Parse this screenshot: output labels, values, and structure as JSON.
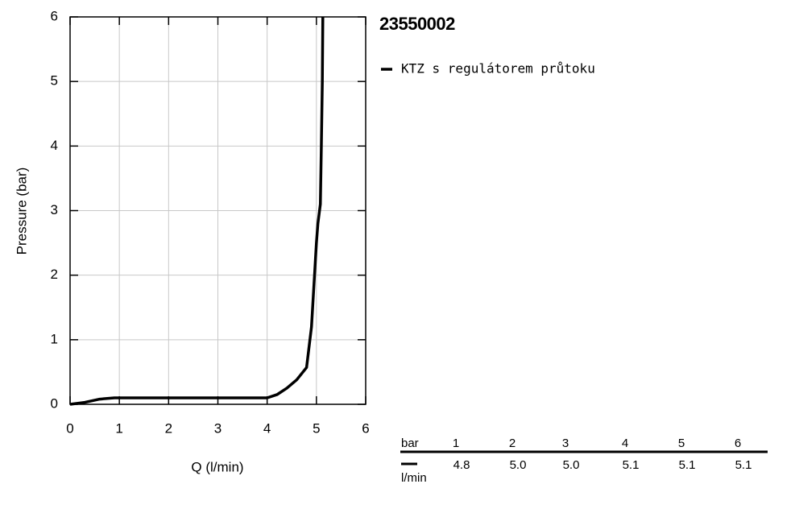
{
  "chart_data": {
    "type": "line",
    "title": "23550002",
    "x_label": "Q (l/min)",
    "y_label": "Pressure (bar)",
    "xlim": [
      0,
      6
    ],
    "ylim": [
      0,
      6
    ],
    "xticks": [
      0,
      1,
      2,
      3,
      4,
      5,
      6
    ],
    "yticks": [
      0,
      1,
      2,
      3,
      4,
      5,
      6
    ],
    "grid": true,
    "series": [
      {
        "name": "KTZ s regulátorem průtoku",
        "color": "#000000",
        "x": [
          0,
          0.3,
          0.6,
          0.9,
          1,
          2,
          3,
          4,
          4.2,
          4.4,
          4.6,
          4.8,
          4.9,
          5.0,
          5.03,
          5.08,
          5.1,
          5.12,
          5.13
        ],
        "values": [
          0,
          0.03,
          0.08,
          0.1,
          0.1,
          0.1,
          0.1,
          0.1,
          0.15,
          0.25,
          0.38,
          0.57,
          1.2,
          2.5,
          2.8,
          3.1,
          4,
          5,
          6
        ]
      }
    ]
  },
  "table": {
    "header_label": "bar",
    "columns": [
      1,
      2,
      3,
      4,
      5,
      6
    ],
    "row_label": "l/min",
    "values": [
      "4.8",
      "5.0",
      "5.0",
      "5.1",
      "5.1",
      "5.1"
    ]
  }
}
